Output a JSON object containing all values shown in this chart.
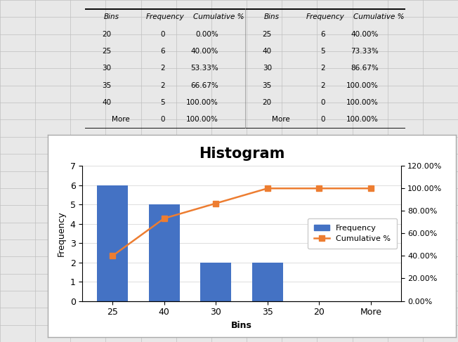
{
  "title": "Histogram",
  "bins": [
    "25",
    "40",
    "30",
    "35",
    "20",
    "More"
  ],
  "frequency": [
    6,
    5,
    2,
    2,
    0,
    0
  ],
  "cumulative_pct": [
    40.0,
    73.33,
    86.67,
    100.0,
    100.0,
    100.0
  ],
  "bar_color": "#4472C4",
  "line_color": "#ED7D31",
  "xlabel": "Bins",
  "ylabel_left": "Frequency",
  "ylim_left": [
    0,
    7
  ],
  "ylim_right": [
    0,
    120
  ],
  "yticks_left": [
    0,
    1,
    2,
    3,
    4,
    5,
    6,
    7
  ],
  "yticks_right": [
    0,
    20,
    40,
    60,
    80,
    100,
    120
  ],
  "ytick_labels_right": [
    "0.00%",
    "20.00%",
    "40.00%",
    "60.00%",
    "80.00%",
    "100.00%",
    "120.00%"
  ],
  "legend_frequency": "Frequency",
  "legend_cumulative": "Cumulative %",
  "title_fontsize": 15,
  "spreadsheet_bg": "#E8E8E8",
  "cell_bg": "#FFFFFF",
  "grid_line_color": "#BFBFBF",
  "chart_border_color": "#AAAAAA",
  "table_header": [
    "Bins",
    "Frequency",
    "Cumulative %",
    "Bins",
    "Frequency",
    "Cumulative %"
  ],
  "table_col1": [
    [
      "20",
      "0",
      "0.00%"
    ],
    [
      "25",
      "6",
      "40.00%"
    ],
    [
      "30",
      "2",
      "53.33%"
    ],
    [
      "35",
      "2",
      "66.67%"
    ],
    [
      "40",
      "5",
      "100.00%"
    ],
    [
      "More",
      "0",
      "100.00%"
    ]
  ],
  "table_col2": [
    [
      "25",
      "6",
      "40.00%"
    ],
    [
      "40",
      "5",
      "73.33%"
    ],
    [
      "30",
      "2",
      "86.67%"
    ],
    [
      "35",
      "2",
      "100.00%"
    ],
    [
      "20",
      "0",
      "100.00%"
    ],
    [
      "More",
      "0",
      "100.00%"
    ]
  ],
  "marker": "s"
}
